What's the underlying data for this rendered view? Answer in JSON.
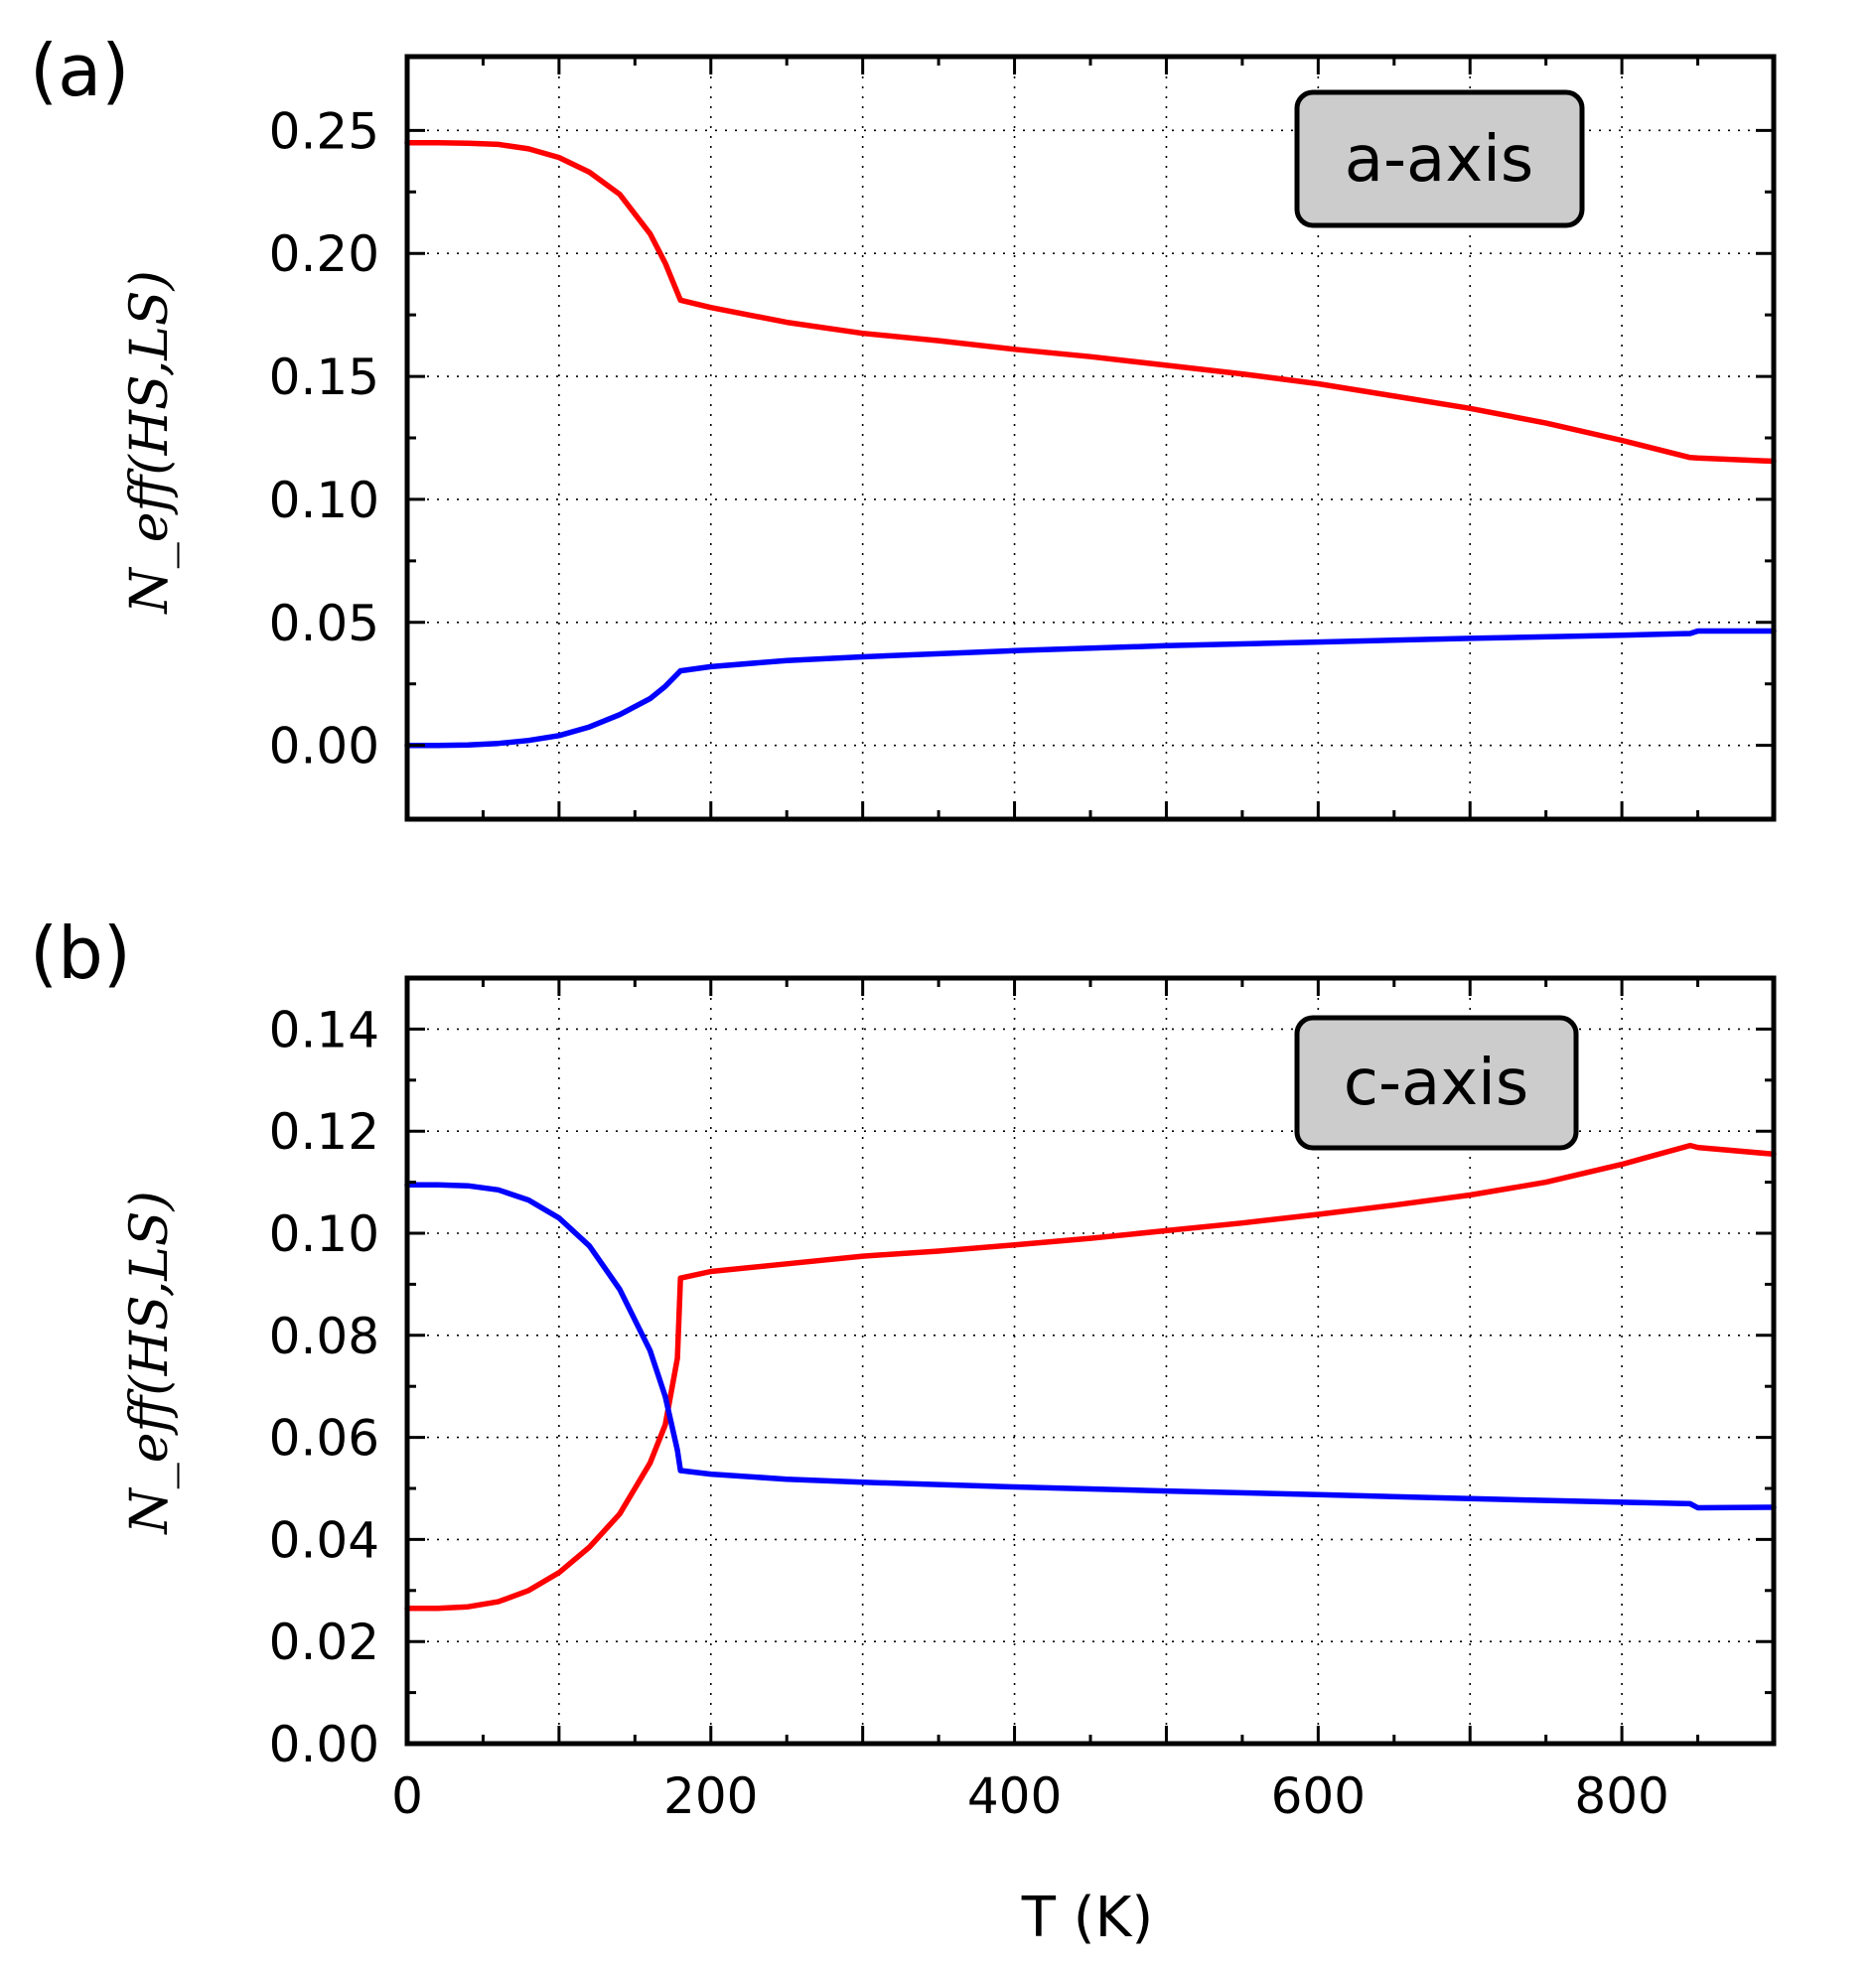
{
  "figure": {
    "panel_labels": [
      "(a)",
      "(b)"
    ]
  },
  "chart_data": [
    {
      "type": "line",
      "panel_label": "(a)",
      "annotation": "a-axis",
      "title": "",
      "xlabel": "T (K)",
      "ylabel": "N_eff(HS,LS)",
      "xlim": [
        0,
        900
      ],
      "ylim": [
        -0.03,
        0.28
      ],
      "xticks": [
        0,
        200,
        400,
        600,
        800
      ],
      "yticks": [
        0.0,
        0.05,
        0.1,
        0.15,
        0.2,
        0.25
      ],
      "ytick_labels": [
        "0.00",
        "0.05",
        "0.10",
        "0.15",
        "0.20",
        "0.25"
      ],
      "grid": true,
      "series": [
        {
          "name": "red",
          "color": "#ff0000",
          "x": [
            0,
            20,
            40,
            60,
            80,
            100,
            120,
            140,
            160,
            170,
            178,
            180,
            200,
            250,
            300,
            350,
            400,
            450,
            500,
            550,
            600,
            650,
            700,
            750,
            800,
            845,
            850,
            900
          ],
          "y": [
            0.245,
            0.245,
            0.2448,
            0.2443,
            0.2425,
            0.239,
            0.233,
            0.224,
            0.208,
            0.196,
            0.184,
            0.181,
            0.178,
            0.172,
            0.1675,
            0.1645,
            0.161,
            0.158,
            0.1545,
            0.151,
            0.147,
            0.142,
            0.137,
            0.131,
            0.124,
            0.117,
            0.1168,
            0.1155
          ]
        },
        {
          "name": "blue",
          "color": "#0000ff",
          "x": [
            0,
            20,
            40,
            60,
            80,
            100,
            120,
            140,
            160,
            170,
            178,
            180,
            200,
            250,
            300,
            400,
            500,
            600,
            700,
            800,
            845,
            850,
            900
          ],
          "y": [
            0.0,
            0.0,
            0.0002,
            0.0008,
            0.002,
            0.004,
            0.0075,
            0.0125,
            0.019,
            0.024,
            0.029,
            0.0303,
            0.032,
            0.0345,
            0.036,
            0.0385,
            0.0405,
            0.042,
            0.0435,
            0.0448,
            0.0455,
            0.0465,
            0.0465
          ]
        }
      ]
    },
    {
      "type": "line",
      "panel_label": "(b)",
      "annotation": "c-axis",
      "title": "",
      "xlabel": "T (K)",
      "ylabel": "N_eff(HS,LS)",
      "xlim": [
        0,
        900
      ],
      "ylim": [
        0.0,
        0.15
      ],
      "xticks": [
        0,
        200,
        400,
        600,
        800
      ],
      "xtick_labels": [
        "0",
        "200",
        "400",
        "600",
        "800"
      ],
      "yticks": [
        0.0,
        0.02,
        0.04,
        0.06,
        0.08,
        0.1,
        0.12,
        0.14
      ],
      "ytick_labels": [
        "0.00",
        "0.02",
        "0.04",
        "0.06",
        "0.08",
        "0.10",
        "0.12",
        "0.14"
      ],
      "grid": true,
      "series": [
        {
          "name": "red",
          "color": "#ff0000",
          "x": [
            0,
            20,
            40,
            60,
            80,
            100,
            120,
            140,
            160,
            170,
            178,
            180,
            200,
            250,
            300,
            350,
            400,
            450,
            500,
            550,
            600,
            650,
            700,
            750,
            800,
            845,
            850,
            900
          ],
          "y": [
            0.0265,
            0.0265,
            0.0268,
            0.0278,
            0.03,
            0.0335,
            0.0385,
            0.045,
            0.055,
            0.0625,
            0.0755,
            0.0912,
            0.0925,
            0.094,
            0.0955,
            0.0965,
            0.0977,
            0.099,
            0.1005,
            0.102,
            0.1037,
            0.1055,
            0.1075,
            0.11,
            0.1135,
            0.1172,
            0.1168,
            0.1155
          ]
        },
        {
          "name": "blue",
          "color": "#0000ff",
          "x": [
            0,
            20,
            40,
            60,
            80,
            100,
            120,
            140,
            160,
            170,
            178,
            180,
            200,
            250,
            300,
            400,
            500,
            600,
            700,
            800,
            845,
            850,
            900
          ],
          "y": [
            0.1095,
            0.1095,
            0.1093,
            0.1085,
            0.1065,
            0.103,
            0.0975,
            0.089,
            0.077,
            0.068,
            0.0575,
            0.0535,
            0.0528,
            0.0518,
            0.0512,
            0.0503,
            0.0495,
            0.0488,
            0.048,
            0.0473,
            0.047,
            0.0462,
            0.0463
          ]
        }
      ]
    }
  ]
}
